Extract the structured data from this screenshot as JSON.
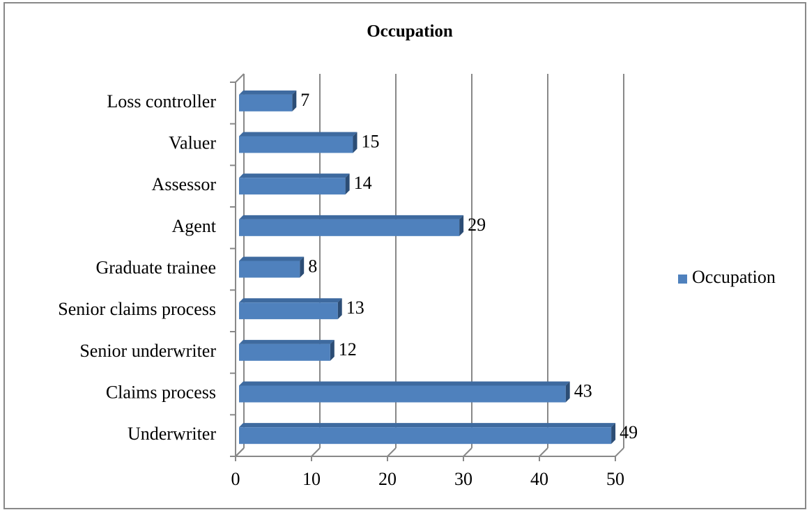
{
  "chart_data": {
    "type": "bar3d-horizontal",
    "title": "Occupation",
    "categories": [
      "Underwriter",
      "Claims process",
      "Senior underwriter",
      "Senior claims process",
      "Graduate trainee",
      "Agent",
      "Assessor",
      "Valuer",
      "Loss controller"
    ],
    "series": [
      {
        "name": "Occupation",
        "color": "#4f81bd",
        "values": [
          49,
          43,
          12,
          13,
          8,
          29,
          14,
          15,
          7
        ]
      }
    ],
    "xlim": [
      0,
      50
    ],
    "xticks": [
      0,
      10,
      20,
      30,
      40,
      50
    ],
    "grid": true,
    "legend": "right"
  }
}
